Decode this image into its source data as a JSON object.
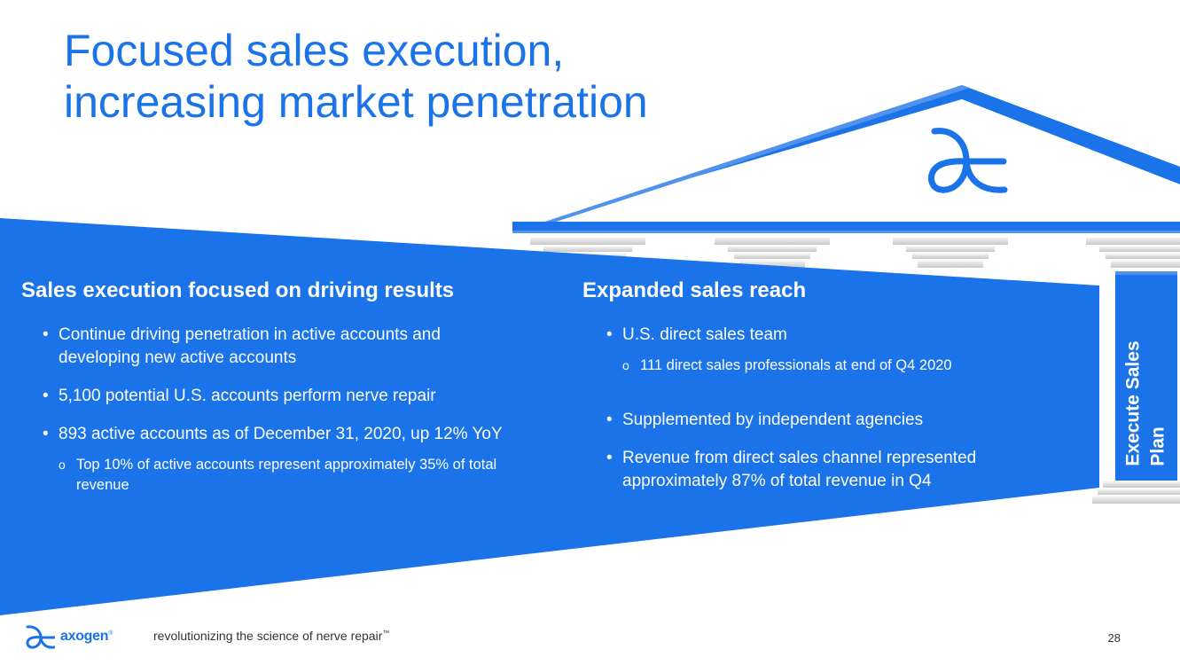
{
  "title": {
    "line1": "Focused sales execution,",
    "line2": "increasing market penetration"
  },
  "left_column": {
    "heading": "Sales execution focused on driving results",
    "bullet1": "Continue driving penetration in active accounts and developing new active accounts",
    "bullet2": "5,100 potential U.S. accounts perform nerve repair",
    "bullet3": "893 active accounts as of December 31, 2020, up 12% YoY",
    "sub_bullet1": "Top 10% of active accounts represent approximately 35% of total revenue"
  },
  "right_column": {
    "heading": "Expanded sales reach",
    "bullet1": "U.S. direct sales team",
    "sub_bullet1": "111 direct sales professionals at end of Q4 2020",
    "bullet2": "Supplemented by independent agencies",
    "bullet3": "Revenue from direct sales channel represented approximately 87% of total revenue in Q4"
  },
  "pillar": {
    "line1": "Execute Sales",
    "line2": "Plan"
  },
  "footer": {
    "logo_text": "axogen",
    "logo_mark": "®",
    "tagline": "revolutionizing the science of nerve repair",
    "tagline_mark": "™",
    "page_number": "28"
  },
  "colors": {
    "brand_blue": "#1a73e8",
    "column_gray": "#d9d9d9",
    "text_white": "#ffffff"
  }
}
